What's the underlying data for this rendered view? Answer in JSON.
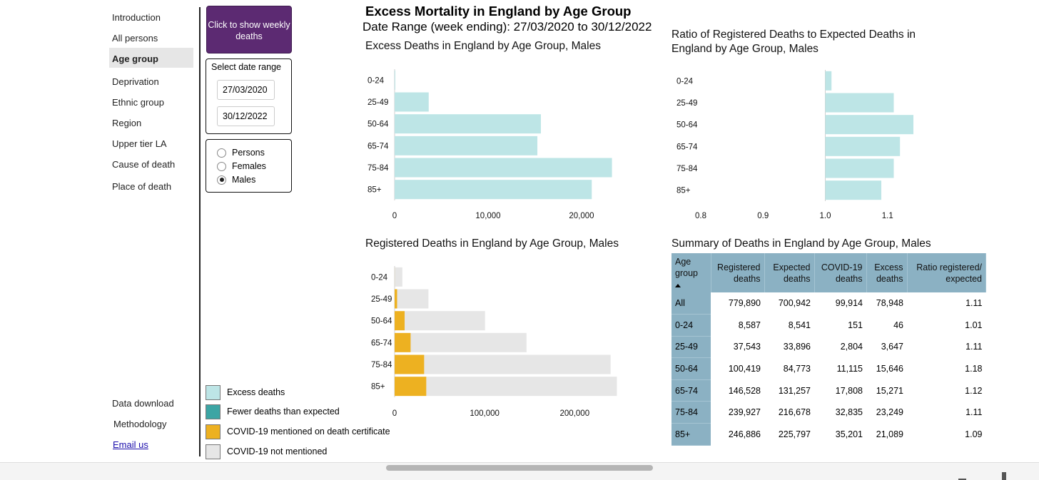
{
  "sidebar": {
    "items": [
      {
        "label": "Introduction",
        "active": false
      },
      {
        "label": "All persons",
        "active": false
      },
      {
        "label": "Age group",
        "active": true
      },
      {
        "label": "Deprivation",
        "active": false
      },
      {
        "label": "Ethnic group",
        "active": false
      },
      {
        "label": "Region",
        "active": false
      },
      {
        "label": "Upper tier LA",
        "active": false
      },
      {
        "label": "Cause of death",
        "active": false
      },
      {
        "label": "Place of death",
        "active": false
      }
    ],
    "bottom_items": [
      {
        "label": "Data download"
      },
      {
        "label": "Methodology"
      },
      {
        "label": "Email us"
      }
    ]
  },
  "controls": {
    "weekly_button": "Click to show weekly deaths",
    "date_range_label": "Select date range",
    "start_date": "27/03/2020",
    "end_date": "30/12/2022",
    "sex_options": [
      {
        "label": "Persons",
        "checked": false
      },
      {
        "label": "Females",
        "checked": false
      },
      {
        "label": "Males",
        "checked": true
      }
    ]
  },
  "legend": [
    {
      "label": "Excess deaths",
      "color": "#bde5e6"
    },
    {
      "label": "Fewer deaths than expected",
      "color": "#3ca5a4"
    },
    {
      "label": "COVID-19 mentioned on death certificate",
      "color": "#edb121"
    },
    {
      "label": "COVID-19 not mentioned",
      "color": "#e6e6e6"
    }
  ],
  "header": {
    "title": "Excess Mortality in England by Age Group",
    "subtitle": "Date Range (week ending): 27/03/2020 to 30/12/2022"
  },
  "chart_data": [
    {
      "type": "bar",
      "orientation": "horizontal",
      "title": "Excess Deaths in England by Age Group, Males",
      "categories": [
        "0-24",
        "25-49",
        "50-64",
        "65-74",
        "75-84",
        "85+"
      ],
      "values": [
        46,
        3647,
        15646,
        15271,
        23249,
        21089
      ],
      "color": "#bde5e6",
      "xlim": [
        0,
        25000
      ],
      "xticks": [
        0,
        10000,
        20000
      ],
      "xtick_labels": [
        "0",
        "10,000",
        "20,000"
      ]
    },
    {
      "type": "bar",
      "orientation": "horizontal",
      "title": "Ratio of Registered Deaths to Expected Deaths in England by Age Group, Males",
      "categories": [
        "0-24",
        "25-49",
        "50-64",
        "65-74",
        "75-84",
        "85+"
      ],
      "values": [
        1.01,
        1.11,
        1.18,
        1.12,
        1.11,
        1.09
      ],
      "baseline": 1.0,
      "color": "#bde5e6",
      "xlim": [
        0.8,
        1.2
      ],
      "xticks": [
        0.8,
        0.9,
        1.0,
        1.1
      ],
      "xtick_labels": [
        "0.8",
        "0.9",
        "1.0",
        "1.1"
      ]
    },
    {
      "type": "bar",
      "orientation": "horizontal",
      "stacked": true,
      "title": "Registered Deaths in England by Age Group, Males",
      "categories": [
        "0-24",
        "25-49",
        "50-64",
        "65-74",
        "75-84",
        "85+"
      ],
      "series": [
        {
          "name": "COVID-19 mentioned on death certificate",
          "color": "#edb121",
          "values": [
            151,
            2804,
            11115,
            17808,
            32835,
            35201
          ]
        },
        {
          "name": "COVID-19 not mentioned",
          "color": "#e6e6e6",
          "values": [
            8436,
            34739,
            89304,
            128720,
            207092,
            211685
          ]
        }
      ],
      "xlim": [
        0,
        260000
      ],
      "xticks": [
        0,
        100000,
        200000
      ],
      "xtick_labels": [
        "0",
        "100,000",
        "200,000"
      ]
    },
    {
      "type": "table",
      "title": "Summary of Deaths in England by Age Group, Males",
      "columns": [
        [
          "Age",
          "group"
        ],
        [
          "Registered",
          "deaths"
        ],
        [
          "Expected",
          "deaths"
        ],
        [
          "COVID-19",
          "deaths"
        ],
        [
          "Excess",
          "deaths"
        ],
        [
          "Ratio registered/",
          "expected"
        ]
      ],
      "rows": [
        [
          "All",
          "779,890",
          "700,942",
          "99,914",
          "78,948",
          "1.11"
        ],
        [
          "0-24",
          "8,587",
          "8,541",
          "151",
          "46",
          "1.01"
        ],
        [
          "25-49",
          "37,543",
          "33,896",
          "2,804",
          "3,647",
          "1.11"
        ],
        [
          "50-64",
          "100,419",
          "84,773",
          "11,115",
          "15,646",
          "1.18"
        ],
        [
          "65-74",
          "146,528",
          "131,257",
          "17,808",
          "15,271",
          "1.12"
        ],
        [
          "75-84",
          "239,927",
          "216,678",
          "32,835",
          "23,249",
          "1.11"
        ],
        [
          "85+",
          "246,886",
          "225,797",
          "35,201",
          "21,089",
          "1.09"
        ]
      ]
    }
  ]
}
